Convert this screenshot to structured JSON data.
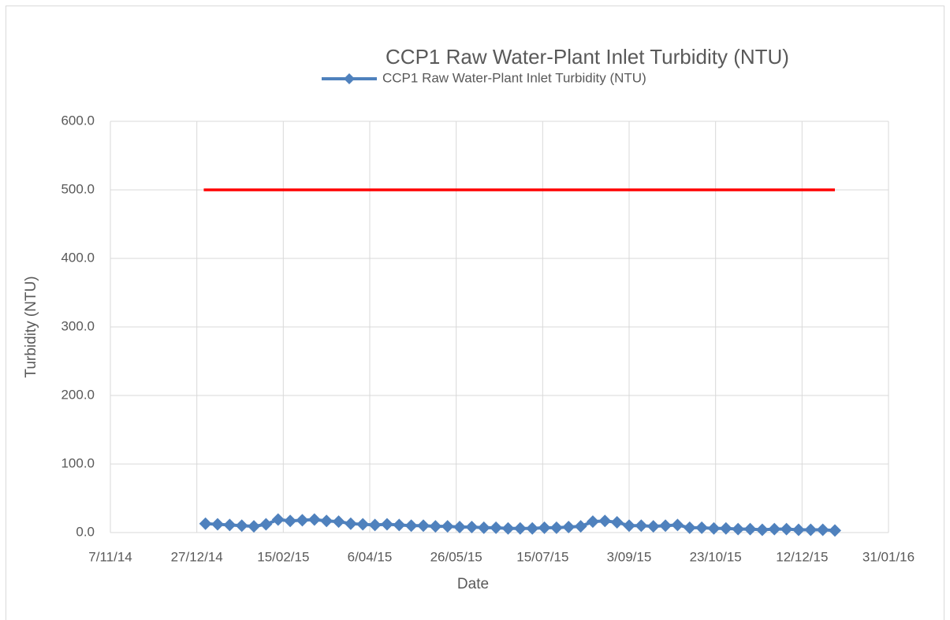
{
  "chart_data": {
    "type": "line",
    "title": "CCP1 Raw Water-Plant Inlet Turbidity (NTU)",
    "x_label": "Date",
    "y_label": "Turbidity (NTU)",
    "xlim": [
      "2014-11-07",
      "2016-01-31"
    ],
    "xticks": [
      {
        "value": "2014-11-07",
        "label": "7/11/14"
      },
      {
        "value": "2014-12-27",
        "label": "27/12/14"
      },
      {
        "value": "2015-02-15",
        "label": "15/02/15"
      },
      {
        "value": "2015-04-06",
        "label": "6/04/15"
      },
      {
        "value": "2015-05-26",
        "label": "26/05/15"
      },
      {
        "value": "2015-07-15",
        "label": "15/07/15"
      },
      {
        "value": "2015-09-03",
        "label": "3/09/15"
      },
      {
        "value": "2015-10-23",
        "label": "23/10/15"
      },
      {
        "value": "2015-12-12",
        "label": "12/12/15"
      },
      {
        "value": "2016-01-31",
        "label": "31/01/16"
      }
    ],
    "ylim": [
      0,
      600
    ],
    "yticks": [
      {
        "value": 0,
        "label": "0.0"
      },
      {
        "value": 100,
        "label": "100.0"
      },
      {
        "value": 200,
        "label": "200.0"
      },
      {
        "value": 300,
        "label": "300.0"
      },
      {
        "value": 400,
        "label": "400.0"
      },
      {
        "value": 500,
        "label": "500.0"
      },
      {
        "value": 600,
        "label": "600.0"
      }
    ],
    "grid": true,
    "legend": "top",
    "series": [
      {
        "name": "CCP1 Raw Water-Plant Inlet Turbidity (NTU)",
        "color": "#4f81bd",
        "marker": "diamond",
        "x": [
          "2015-01-01",
          "2015-01-08",
          "2015-01-15",
          "2015-01-22",
          "2015-01-29",
          "2015-02-05",
          "2015-02-12",
          "2015-02-19",
          "2015-02-26",
          "2015-03-05",
          "2015-03-12",
          "2015-03-19",
          "2015-03-26",
          "2015-04-02",
          "2015-04-09",
          "2015-04-16",
          "2015-04-23",
          "2015-04-30",
          "2015-05-07",
          "2015-05-14",
          "2015-05-21",
          "2015-05-28",
          "2015-06-04",
          "2015-06-11",
          "2015-06-18",
          "2015-06-25",
          "2015-07-02",
          "2015-07-09",
          "2015-07-16",
          "2015-07-23",
          "2015-07-30",
          "2015-08-06",
          "2015-08-13",
          "2015-08-20",
          "2015-08-27",
          "2015-09-03",
          "2015-09-10",
          "2015-09-17",
          "2015-09-24",
          "2015-10-01",
          "2015-10-08",
          "2015-10-15",
          "2015-10-22",
          "2015-10-29",
          "2015-11-05",
          "2015-11-12",
          "2015-11-19",
          "2015-11-26",
          "2015-12-03",
          "2015-12-10",
          "2015-12-17",
          "2015-12-24",
          "2015-12-31"
        ],
        "values": [
          13,
          12,
          11,
          10,
          9,
          12,
          19,
          17,
          18,
          19,
          17,
          16,
          13,
          12,
          11,
          12,
          11,
          10,
          10,
          9,
          9,
          8,
          8,
          7,
          7,
          6,
          6,
          6,
          7,
          7,
          8,
          9,
          16,
          17,
          15,
          10,
          10,
          9,
          10,
          11,
          7,
          7,
          6,
          6,
          5,
          5,
          4,
          5,
          5,
          4,
          4,
          4,
          3
        ]
      },
      {
        "color": "#ff0000",
        "x": [
          "2014-12-31",
          "2015-12-31"
        ],
        "values": [
          500,
          500
        ]
      }
    ]
  }
}
